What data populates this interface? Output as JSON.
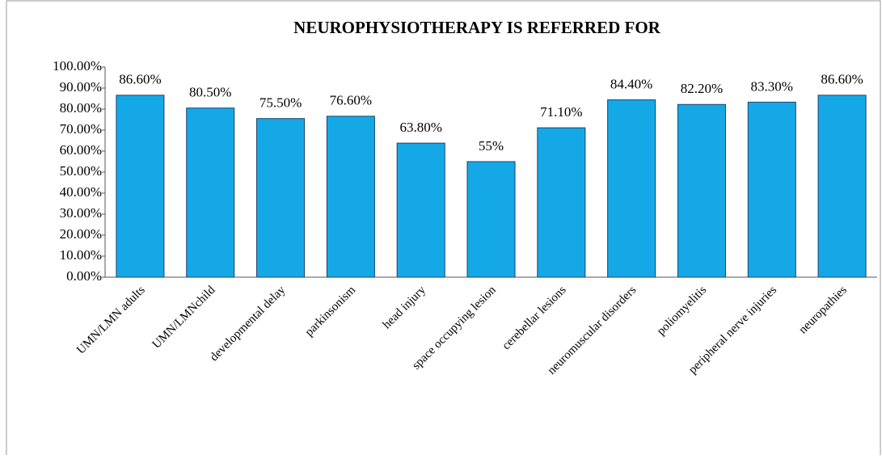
{
  "chart_data": {
    "type": "bar",
    "title": "NEUROPHYSIOTHERAPY  IS REFERRED  FOR",
    "categories": [
      "UMN/LMN adults",
      "UMN/LMNchild",
      "developmental  delay",
      "parkinsonism",
      "head injury",
      "space occupying lesion",
      "cerebellar lesions",
      "neuromuscular disorders",
      "poliomyelitis",
      "peripheral nerve injuries",
      "neuropathies"
    ],
    "values": [
      86.6,
      80.5,
      75.5,
      76.6,
      63.8,
      55,
      71.1,
      84.4,
      82.2,
      83.3,
      86.6
    ],
    "value_labels": [
      "86.60%",
      "80.50%",
      "75.50%",
      "76.60%",
      "63.80%",
      "55%",
      "71.10%",
      "84.40%",
      "82.20%",
      "83.30%",
      "86.60%"
    ],
    "color": "#14a9e6",
    "ylim": [
      0,
      100
    ],
    "yticks": [
      {
        "value": 0,
        "label": "0.00%"
      },
      {
        "value": 10,
        "label": "10.00%"
      },
      {
        "value": 20,
        "label": "20.00%"
      },
      {
        "value": 30,
        "label": "30.00%"
      },
      {
        "value": 40,
        "label": "40.00%"
      },
      {
        "value": 50,
        "label": "50.00%"
      },
      {
        "value": 60,
        "label": "60.00%"
      },
      {
        "value": 70,
        "label": "70.00%"
      },
      {
        "value": 80,
        "label": "80.00%"
      },
      {
        "value": 90,
        "label": "90.00%"
      },
      {
        "value": 100,
        "label": "100.00%"
      }
    ],
    "grid": false
  }
}
